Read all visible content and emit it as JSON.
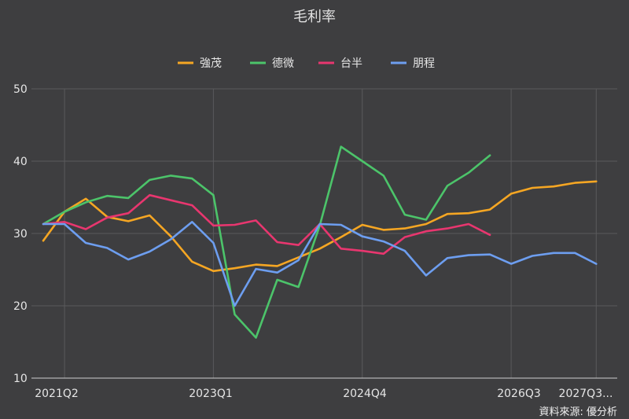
{
  "chart_data": {
    "type": "line",
    "title": "毛利率",
    "xlabel": "",
    "ylabel": "",
    "ylim": [
      10,
      50
    ],
    "yticks": [
      10,
      20,
      30,
      40,
      50
    ],
    "grid": true,
    "legend_position": "top-center",
    "x_tick_labels": [
      "2021Q2",
      "2023Q1",
      "2024Q4",
      "2026Q3",
      "2027Q3..."
    ],
    "x": [
      "2021Q1",
      "2021Q2",
      "2021Q3",
      "2021Q4",
      "2022Q1",
      "2022Q2",
      "2022Q3",
      "2022Q4",
      "2023Q1",
      "2023Q2",
      "2023Q3",
      "2023Q4",
      "2024Q1",
      "2024Q2",
      "2024Q3",
      "2024Q4",
      "2025Q1",
      "2025Q2",
      "2025Q3",
      "2025Q4",
      "2026Q1",
      "2026Q2",
      "2026Q3",
      "2026Q4",
      "2027Q1",
      "2027Q2",
      "2027Q3"
    ],
    "series": [
      {
        "name": "強茂",
        "color": "#f5a623",
        "values": [
          29.0,
          33.0,
          34.8,
          32.3,
          31.7,
          32.5,
          29.6,
          26.1,
          24.8,
          25.2,
          25.7,
          25.5,
          26.7,
          27.9,
          29.5,
          31.2,
          30.5,
          30.7,
          31.3,
          32.7,
          32.8,
          33.3,
          35.5,
          36.3,
          36.5,
          37.0,
          37.2
        ]
      },
      {
        "name": "德微",
        "color": "#4cc46a",
        "values": [
          31.3,
          33.0,
          34.3,
          35.2,
          34.9,
          37.4,
          38.0,
          37.6,
          35.3,
          18.8,
          15.6,
          23.6,
          22.6,
          31.1,
          42.0,
          40.0,
          38.0,
          32.6,
          31.9,
          36.6,
          38.4,
          40.8,
          null,
          null,
          null,
          null,
          null
        ]
      },
      {
        "name": "台半",
        "color": "#e8366f",
        "values": [
          31.3,
          31.6,
          30.6,
          32.2,
          32.8,
          35.3,
          34.6,
          33.9,
          31.1,
          31.2,
          31.8,
          28.8,
          28.4,
          31.3,
          27.9,
          27.6,
          27.2,
          29.5,
          30.3,
          30.7,
          31.3,
          29.8,
          null,
          null,
          null,
          null,
          null
        ]
      },
      {
        "name": "朋程",
        "color": "#6d9ef0",
        "values": [
          31.3,
          31.3,
          28.7,
          28.0,
          26.4,
          27.5,
          29.2,
          31.6,
          28.7,
          20.0,
          25.1,
          24.6,
          26.3,
          31.3,
          31.2,
          29.6,
          28.9,
          27.6,
          24.2,
          26.6,
          27.0,
          27.1,
          25.8,
          26.9,
          27.3,
          27.3,
          25.8
        ]
      }
    ]
  },
  "source_text": "資料來源: 優分析"
}
